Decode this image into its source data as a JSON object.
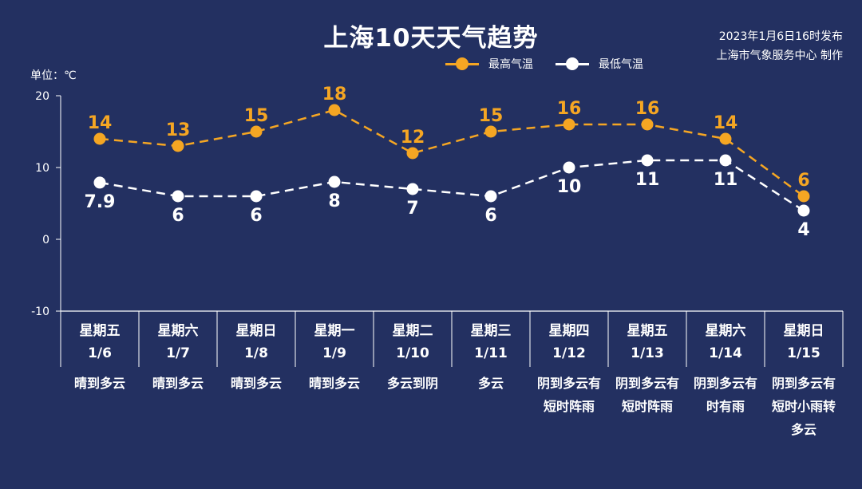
{
  "title": "上海10天天气趋势",
  "publish_time": "2023年1月6日16时发布",
  "publisher": "上海市气象服务中心 制作",
  "unit_label": "单位：℃",
  "colors": {
    "background": "#233061",
    "high": "#F5A623",
    "low": "#FFFFFF",
    "axis": "#FFFFFF"
  },
  "chart_data": {
    "type": "line",
    "title": "上海10天天气趋势",
    "ylabel": "单位：℃",
    "ylim": [
      -10,
      20
    ],
    "yticks": [
      -10,
      0,
      10,
      20
    ],
    "grid": false,
    "legend_position": "top-right",
    "categories": [
      "1/6",
      "1/7",
      "1/8",
      "1/9",
      "1/10",
      "1/11",
      "1/12",
      "1/13",
      "1/14",
      "1/15"
    ],
    "series": [
      {
        "name": "最高气温",
        "values": [
          14,
          13,
          15,
          18,
          12,
          15,
          16,
          16,
          14,
          6
        ],
        "labels": [
          "14",
          "13",
          "15",
          "18",
          "12",
          "15",
          "16",
          "16",
          "14",
          "6"
        ],
        "color": "#F5A623"
      },
      {
        "name": "最低气温",
        "values": [
          7.9,
          6,
          6,
          8,
          7,
          6,
          10,
          11,
          11,
          4
        ],
        "labels": [
          "7.9",
          "6",
          "6",
          "8",
          "7",
          "6",
          "10",
          "11",
          "11",
          "4"
        ],
        "color": "#FFFFFF"
      }
    ]
  },
  "days": [
    {
      "weekday": "星期五",
      "date": "1/6",
      "weather": "晴到多云"
    },
    {
      "weekday": "星期六",
      "date": "1/7",
      "weather": "晴到多云"
    },
    {
      "weekday": "星期日",
      "date": "1/8",
      "weather": "晴到多云"
    },
    {
      "weekday": "星期一",
      "date": "1/9",
      "weather": "晴到多云"
    },
    {
      "weekday": "星期二",
      "date": "1/10",
      "weather": "多云到阴"
    },
    {
      "weekday": "星期三",
      "date": "1/11",
      "weather": "多云"
    },
    {
      "weekday": "星期四",
      "date": "1/12",
      "weather": "阴到多云有短时阵雨"
    },
    {
      "weekday": "星期五",
      "date": "1/13",
      "weather": "阴到多云有短时阵雨"
    },
    {
      "weekday": "星期六",
      "date": "1/14",
      "weather": "阴到多云有时有雨"
    },
    {
      "weekday": "星期日",
      "date": "1/15",
      "weather": "阴到多云有短时小雨转多云"
    }
  ]
}
